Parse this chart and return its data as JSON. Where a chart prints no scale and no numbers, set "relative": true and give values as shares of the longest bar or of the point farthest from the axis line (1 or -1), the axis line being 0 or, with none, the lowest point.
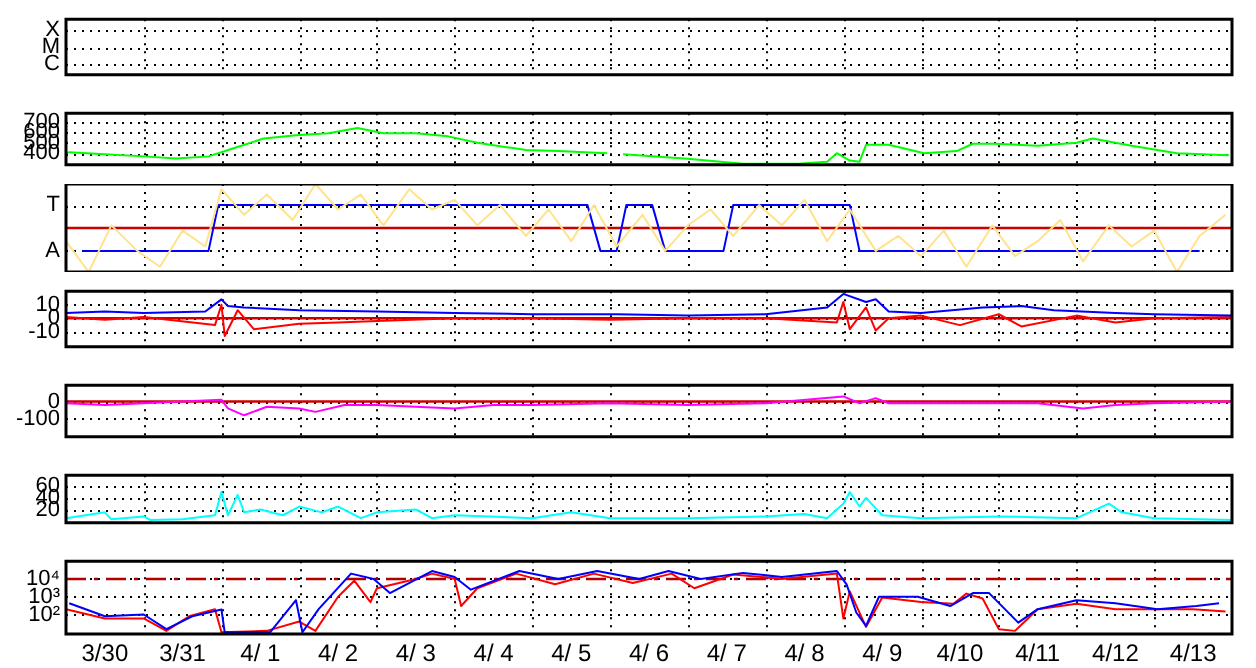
{
  "chart_data": [
    {
      "type": "other",
      "y_categories": [
        "X",
        "M",
        "C"
      ]
    },
    {
      "type": "line",
      "xlim": [
        "--03-30",
        "--04-14"
      ],
      "xticks": [
        {
          "value": "--03-31",
          "label": null
        },
        {
          "value": "--04-01",
          "label": null
        },
        {
          "value": "--04-02",
          "label": null
        },
        {
          "value": "--04-03",
          "label": null
        },
        {
          "value": "--04-04",
          "label": null
        },
        {
          "value": "--04-05",
          "label": null
        },
        {
          "value": "--04-06",
          "label": null
        },
        {
          "value": "--04-07",
          "label": null
        },
        {
          "value": "--04-08",
          "label": null
        },
        {
          "value": "--04-09",
          "label": null
        },
        {
          "value": "--04-10",
          "label": null
        },
        {
          "value": "--04-11",
          "label": null
        },
        {
          "value": "--04-12",
          "label": null
        },
        {
          "value": "--04-13",
          "label": null
        }
      ],
      "ylim": [
        290,
        780
      ],
      "yticks": [
        400,
        500,
        600,
        700
      ],
      "grid": true,
      "tick_labels": "y",
      "marker": "none",
      "series": [
        {
          "color": "#00ff00",
          "x": [
            "--03-30T00:00",
            "--03-30T01:00",
            "--03-30T12:00",
            "--03-31T00:00",
            "--03-31T10:00",
            "--03-31T20:00",
            "--04-01T03:00",
            "--04-01T13:00",
            "--04-01T23:00",
            "--04-02T09:00",
            "--04-02T18:00",
            "--04-03T02:00",
            "--04-03T12:00",
            "--04-03T22:00",
            "--04-04T07:00",
            "--04-04T22:00",
            "--04-05T08:00",
            "--04-05T23:00",
            "--04-06T01:00",
            "--04-06T04:00",
            "--04-06T23:00",
            "--04-07T17:00",
            "--04-08T10:00",
            "--04-08T19:00",
            "--04-08T22:00",
            "--04-09T02:00",
            "--04-09T05:00",
            "--04-09T07:00",
            "--04-09T14:00",
            "--04-10T01:00",
            "--04-10T11:00",
            "--04-10T16:00",
            "--04-10T23:00",
            "--04-11T12:00",
            "--04-12T00:00",
            "--04-12T05:00",
            "--04-12T17:00",
            "--04-13T07:00",
            "--04-13T23:00"
          ],
          "values": [
            400,
            410,
            390,
            370,
            350,
            370,
            440,
            540,
            570,
            590,
            640,
            590,
            590,
            560,
            500,
            430,
            420,
            400,
            null,
            390,
            350,
            300,
            300,
            320,
            400,
            330,
            320,
            480,
            480,
            400,
            420,
            490,
            490,
            470,
            500,
            540,
            470,
            400,
            380
          ]
        }
      ]
    },
    {
      "type": "line",
      "relative": true,
      "xlim": [
        "--03-30",
        "--04-14"
      ],
      "xticks": [
        {
          "value": "--03-31",
          "label": null
        },
        {
          "value": "--04-01",
          "label": null
        },
        {
          "value": "--04-02",
          "label": null
        },
        {
          "value": "--04-03",
          "label": null
        },
        {
          "value": "--04-04",
          "label": null
        },
        {
          "value": "--04-05",
          "label": null
        },
        {
          "value": "--04-06",
          "label": null
        },
        {
          "value": "--04-07",
          "label": null
        },
        {
          "value": "--04-08",
          "label": null
        },
        {
          "value": "--04-09",
          "label": null
        },
        {
          "value": "--04-10",
          "label": null
        },
        {
          "value": "--04-11",
          "label": null
        },
        {
          "value": "--04-12",
          "label": null
        },
        {
          "value": "--04-13",
          "label": null
        }
      ],
      "grid": true,
      "tick_labels": false,
      "marker": "none",
      "annotations": [
        "T",
        "A"
      ],
      "ref_lines": [
        {
          "axis": "y",
          "value": 0.5,
          "color": "#cc0000"
        }
      ],
      "series": [
        {
          "color": "#ffe38c",
          "x": [
            "--03-30T00:00",
            "--03-30T07:00",
            "--03-30T14:00",
            "--03-30T22:00",
            "--03-31T05:00",
            "--03-31T12:00",
            "--03-31T19:00",
            "--04-01T00:00",
            "--04-01T07:00",
            "--04-01T14:00",
            "--04-01T22:00",
            "--04-02T05:00",
            "--04-02T12:00",
            "--04-02T19:00",
            "--04-03T02:00",
            "--04-03T10:00",
            "--04-03T17:00",
            "--04-04T00:00",
            "--04-04T07:00",
            "--04-04T14:00",
            "--04-04T22:00",
            "--04-05T05:00",
            "--04-05T12:00",
            "--04-05T19:00",
            "--04-06T02:00",
            "--04-06T10:00",
            "--04-06T17:00",
            "--04-07T00:00",
            "--04-07T07:00",
            "--04-07T14:00",
            "--04-07T22:00",
            "--04-08T05:00",
            "--04-08T12:00",
            "--04-08T19:00",
            "--04-09T02:00",
            "--04-09T10:00",
            "--04-09T17:00",
            "--04-10T00:00",
            "--04-10T07:00",
            "--04-10T14:00",
            "--04-10T22:00",
            "--04-11T05:00",
            "--04-11T12:00",
            "--04-11T19:00",
            "--04-12T02:00",
            "--04-12T10:00",
            "--04-12T17:00",
            "--04-13T00:00",
            "--04-13T07:00",
            "--04-13T14:00",
            "--04-13T22:00"
          ],
          "values": [
            0.35,
            0,
            0.53,
            0.24,
            0.06,
            0.47,
            0.29,
            0.94,
            0.65,
            0.88,
            0.59,
            1,
            0.71,
            0.88,
            0.53,
            0.94,
            0.71,
            0.82,
            0.53,
            0.76,
            0.41,
            0.71,
            0.35,
            0.76,
            0.29,
            0.65,
            0.24,
            0.53,
            0.71,
            0.41,
            0.76,
            0.53,
            0.82,
            0.35,
            0.71,
            0.24,
            0.41,
            0.18,
            0.47,
            0.06,
            0.53,
            0.18,
            0.35,
            0.59,
            0.12,
            0.53,
            0.29,
            0.47,
            0,
            0.41,
            0.65
          ]
        },
        {
          "color": "#0000ff",
          "x": [
            "--03-30T05:00",
            "--03-31T20:00",
            "--03-31T23:00",
            "--04-05T17:00",
            "--04-05T21:00",
            "--04-06T02:00",
            "--04-06T05:00",
            "--04-06T13:00",
            "--04-06T17:00",
            "--04-07T11:00",
            "--04-07T14:00",
            "--04-09T02:00",
            "--04-09T05:00",
            "--04-13T14:00"
          ],
          "values": [
            0.24,
            0.24,
            0.76,
            0.76,
            0.24,
            0.24,
            0.76,
            0.76,
            0.24,
            0.24,
            0.76,
            0.76,
            0.24,
            0.24
          ]
        }
      ]
    },
    {
      "type": "line",
      "xlim": [
        "--03-30",
        "--04-14"
      ],
      "xticks": [
        {
          "value": "--03-31",
          "label": null
        },
        {
          "value": "--04-01",
          "label": null
        },
        {
          "value": "--04-02",
          "label": null
        },
        {
          "value": "--04-03",
          "label": null
        },
        {
          "value": "--04-04",
          "label": null
        },
        {
          "value": "--04-05",
          "label": null
        },
        {
          "value": "--04-06",
          "label": null
        },
        {
          "value": "--04-07",
          "label": null
        },
        {
          "value": "--04-08",
          "label": null
        },
        {
          "value": "--04-09",
          "label": null
        },
        {
          "value": "--04-10",
          "label": null
        },
        {
          "value": "--04-11",
          "label": null
        },
        {
          "value": "--04-12",
          "label": null
        },
        {
          "value": "--04-13",
          "label": null
        }
      ],
      "ylim": [
        -21,
        20
      ],
      "yticks": [
        -10,
        0,
        10
      ],
      "grid": true,
      "tick_labels": "y",
      "marker": "none",
      "ref_lines": [
        {
          "axis": "y",
          "value": 0,
          "color": "#cc0000"
        }
      ],
      "series": [
        {
          "color": "#0000ff",
          "x": [
            "--03-30T00:00",
            "--03-30T12:00",
            "--03-31T00:00",
            "--03-31T19:00",
            "--04-01T00:00",
            "--04-01T02:00",
            "--04-01T07:00",
            "--04-02T00:00",
            "--04-03T00:00",
            "--04-04T00:00",
            "--04-05T00:00",
            "--04-05T22:00",
            "--04-06T02:00",
            "--04-07T00:00",
            "--04-08T00:00",
            "--04-08T19:00",
            "--04-09T00:00",
            "--04-09T07:00",
            "--04-09T10:00",
            "--04-09T14:00",
            "--04-10T00:00",
            "--04-10T19:00",
            "--04-11T07:00",
            "--04-11T17:00",
            "--04-12T12:00",
            "--04-13T00:00",
            "--04-14T00:00"
          ],
          "values": [
            4,
            5,
            4,
            5,
            14,
            9,
            8,
            6,
            5,
            4,
            3,
            3,
            3,
            2,
            3,
            8,
            18,
            12,
            14,
            5,
            4,
            8,
            9,
            6,
            4,
            3,
            2
          ]
        },
        {
          "color": "#ff0000",
          "x": [
            "--03-30T00:00",
            "--03-30T12:00",
            "--03-31T00:00",
            "--03-31T22:00",
            "--04-01T00:00",
            "--04-01T01:00",
            "--04-01T05:00",
            "--04-01T10:00",
            "--04-02T00:00",
            "--04-02T12:00",
            "--04-03T00:00",
            "--04-04T00:00",
            "--04-05T00:00",
            "--04-06T00:00",
            "--04-07T00:00",
            "--04-08T00:00",
            "--04-08T22:00",
            "--04-09T00:00",
            "--04-09T02:00",
            "--04-09T07:00",
            "--04-09T10:00",
            "--04-09T14:00",
            "--04-10T00:00",
            "--04-10T12:00",
            "--04-11T00:00",
            "--04-11T07:00",
            "--04-12T00:00",
            "--04-12T12:00",
            "--04-13T00:00",
            "--04-14T00:00"
          ],
          "values": [
            1,
            -1,
            1,
            -5,
            10,
            -13,
            6,
            -8,
            -4,
            -3,
            -2,
            0,
            0,
            -1,
            0,
            0,
            -3,
            12,
            -8,
            8,
            -9,
            0,
            2,
            -5,
            3,
            -6,
            2,
            -3,
            0,
            1
          ]
        }
      ]
    },
    {
      "type": "line",
      "xlim": [
        "--03-30",
        "--04-14"
      ],
      "xticks": [
        {
          "value": "--03-31",
          "label": null
        },
        {
          "value": "--04-01",
          "label": null
        },
        {
          "value": "--04-02",
          "label": null
        },
        {
          "value": "--04-03",
          "label": null
        },
        {
          "value": "--04-04",
          "label": null
        },
        {
          "value": "--04-05",
          "label": null
        },
        {
          "value": "--04-06",
          "label": null
        },
        {
          "value": "--04-07",
          "label": null
        },
        {
          "value": "--04-08",
          "label": null
        },
        {
          "value": "--04-09",
          "label": null
        },
        {
          "value": "--04-10",
          "label": null
        },
        {
          "value": "--04-11",
          "label": null
        },
        {
          "value": "--04-12",
          "label": null
        },
        {
          "value": "--04-13",
          "label": null
        }
      ],
      "ylim": [
        -205,
        95
      ],
      "yticks": [
        -100,
        0
      ],
      "grid": true,
      "tick_labels": "y",
      "marker": "none",
      "ref_lines": [
        {
          "axis": "y",
          "value": 0,
          "color": "#cc0000"
        }
      ],
      "series": [
        {
          "color": "#ff00ff",
          "x": [
            "--03-30T00:00",
            "--03-30T12:00",
            "--03-31T00:00",
            "--04-01T00:00",
            "--04-01T02:00",
            "--04-01T07:00",
            "--04-01T14:00",
            "--04-02T00:00",
            "--04-02T05:00",
            "--04-02T14:00",
            "--04-03T00:00",
            "--04-04T00:00",
            "--04-04T12:00",
            "--04-05T00:00",
            "--04-06T00:00",
            "--04-07T00:00",
            "--04-08T00:00",
            "--04-09T00:00",
            "--04-09T05:00",
            "--04-09T10:00",
            "--04-09T14:00",
            "--04-10T00:00",
            "--04-11T00:00",
            "--04-11T12:00",
            "--04-12T02:00",
            "--04-12T12:00",
            "--04-13T00:00",
            "--04-14T00:00"
          ],
          "values": [
            -10,
            -20,
            -10,
            10,
            -40,
            -80,
            -30,
            -40,
            -60,
            -20,
            -20,
            -40,
            -20,
            -20,
            -10,
            -20,
            -10,
            30,
            -10,
            20,
            -10,
            -10,
            -10,
            -10,
            -40,
            -20,
            -10,
            0
          ]
        }
      ]
    },
    {
      "type": "line",
      "xlim": [
        "--03-30",
        "--04-14"
      ],
      "xticks": [
        {
          "value": "--03-31",
          "label": null
        },
        {
          "value": "--04-01",
          "label": null
        },
        {
          "value": "--04-02",
          "label": null
        },
        {
          "value": "--04-03",
          "label": null
        },
        {
          "value": "--04-04",
          "label": null
        },
        {
          "value": "--04-05",
          "label": null
        },
        {
          "value": "--04-06",
          "label": null
        },
        {
          "value": "--04-07",
          "label": null
        },
        {
          "value": "--04-08",
          "label": null
        },
        {
          "value": "--04-09",
          "label": null
        },
        {
          "value": "--04-10",
          "label": null
        },
        {
          "value": "--04-11",
          "label": null
        },
        {
          "value": "--04-12",
          "label": null
        },
        {
          "value": "--04-13",
          "label": null
        }
      ],
      "ylim": [
        -3,
        79
      ],
      "yticks": [
        20,
        40,
        60
      ],
      "grid": true,
      "tick_labels": "y",
      "marker": "none",
      "series": [
        {
          "color": "#00ffff",
          "x": [
            "--03-30T00:00",
            "--03-30T12:00",
            "--03-30T14:00",
            "--03-31T00:00",
            "--03-31T02:00",
            "--03-31T12:00",
            "--03-31T22:00",
            "--04-01T00:00",
            "--04-01T02:00",
            "--04-01T05:00",
            "--04-01T07:00",
            "--04-01T12:00",
            "--04-01T19:00",
            "--04-02T00:00",
            "--04-02T07:00",
            "--04-02T12:00",
            "--04-02T19:00",
            "--04-03T00:00",
            "--04-03T12:00",
            "--04-03T17:00",
            "--04-04T00:00",
            "--04-05T00:00",
            "--04-05T12:00",
            "--04-06T00:00",
            "--04-07T00:00",
            "--04-08T00:00",
            "--04-08T12:00",
            "--04-08T19:00",
            "--04-09T00:00",
            "--04-09T02:00",
            "--04-09T05:00",
            "--04-09T07:00",
            "--04-09T12:00",
            "--04-10T00:00",
            "--04-11T00:00",
            "--04-12T00:00",
            "--04-12T10:00",
            "--04-12T14:00",
            "--04-13T00:00",
            "--04-14T00:00"
          ],
          "values": [
            5,
            15,
            3,
            8,
            2,
            3,
            10,
            50,
            10,
            45,
            15,
            20,
            10,
            25,
            15,
            25,
            5,
            15,
            20,
            5,
            10,
            5,
            15,
            5,
            5,
            8,
            12,
            5,
            30,
            50,
            25,
            40,
            10,
            5,
            8,
            5,
            30,
            15,
            5,
            2
          ]
        }
      ]
    },
    {
      "type": "line",
      "xlim": [
        "--03-30",
        "--04-14"
      ],
      "xticks": [
        {
          "value": "--03-30T12:00",
          "label": "3/30"
        },
        {
          "value": "--03-31",
          "label": null
        },
        {
          "value": "--03-31T12:00",
          "label": "3/31"
        },
        {
          "value": "--04-01",
          "label": null
        },
        {
          "value": "--04-01T12:00",
          "label": "4/ 1"
        },
        {
          "value": "--04-02",
          "label": null
        },
        {
          "value": "--04-02T12:00",
          "label": "4/ 2"
        },
        {
          "value": "--04-03",
          "label": null
        },
        {
          "value": "--04-03T12:00",
          "label": "4/ 3"
        },
        {
          "value": "--04-04",
          "label": null
        },
        {
          "value": "--04-04T12:00",
          "label": "4/ 4"
        },
        {
          "value": "--04-05",
          "label": null
        },
        {
          "value": "--04-05T12:00",
          "label": "4/ 5"
        },
        {
          "value": "--04-06",
          "label": null
        },
        {
          "value": "--04-06T12:00",
          "label": "4/ 6"
        },
        {
          "value": "--04-07",
          "label": null
        },
        {
          "value": "--04-07T12:00",
          "label": "4/ 7"
        },
        {
          "value": "--04-08",
          "label": null
        },
        {
          "value": "--04-08T12:00",
          "label": "4/ 8"
        },
        {
          "value": "--04-09",
          "label": null
        },
        {
          "value": "--04-09T12:00",
          "label": "4/ 9"
        },
        {
          "value": "--04-10",
          "label": null
        },
        {
          "value": "--04-10T12:00",
          "label": "4/10"
        },
        {
          "value": "--04-11",
          "label": null
        },
        {
          "value": "--04-11T12:00",
          "label": "4/11"
        },
        {
          "value": "--04-12",
          "label": null
        },
        {
          "value": "--04-12T12:00",
          "label": "4/12"
        },
        {
          "value": "--04-13",
          "label": null
        },
        {
          "value": "--04-13T12:00",
          "label": "4/13"
        }
      ],
      "ylim": [
        8,
        100000
      ],
      "log": true,
      "yticks": [
        {
          "value": 100,
          "label": "10²"
        },
        {
          "value": 1000,
          "label": "10³"
        },
        {
          "value": 10000,
          "label": "10⁴"
        }
      ],
      "grid": true,
      "marker": "none",
      "ref_lines": [
        {
          "axis": "y",
          "value": 10000,
          "color": "#b00000",
          "line_style": "dashed"
        }
      ],
      "series": [
        {
          "color": "#0000ff",
          "x": [
            "--03-30T01:00",
            "--03-30T12:00",
            "--03-31T00:00",
            "--03-31T07:00",
            "--03-31T15:00",
            "--04-01T00:00",
            "--04-01T01:00",
            "--04-01T15:00",
            "--04-01T23:00",
            "--04-02T01:00",
            "--04-02T06:00",
            "--04-02T16:00",
            "--04-02T23:00",
            "--04-03T04:00",
            "--04-03T17:00",
            "--04-04T00:00",
            "--04-04T05:00",
            "--04-04T20:00",
            "--04-05T08:00",
            "--04-05T20:00",
            "--04-06T09:00",
            "--04-06T18:00",
            "--04-07T04:00",
            "--04-07T17:00",
            "--04-08T05:00",
            "--04-08T22:00",
            "--04-09T01:00",
            "--04-09T04:00",
            "--04-09T07:00",
            "--04-09T11:00",
            "--04-09T23:00",
            "--04-10T09:00",
            "--04-10T16:00",
            "--04-10T21:00",
            "--04-11T06:00",
            "--04-11T12:00",
            "--04-12T00:00",
            "--04-12T12:00",
            "--04-13T01:00",
            "--04-13T13:00",
            "--04-13T20:00"
          ],
          "values": [
            430,
            80,
            100,
            15,
            80,
            190,
            10,
            10,
            640,
            10,
            200,
            20000,
            10000,
            1600,
            28000,
            13000,
            2500,
            28000,
            10000,
            28000,
            10000,
            28000,
            10000,
            22000,
            13000,
            28000,
            5000,
            130,
            23,
            1000,
            1000,
            300,
            1600,
            1600,
            35,
            200,
            640,
            430,
            200,
            300,
            430
          ]
        },
        {
          "color": "#ff0000",
          "x": [
            "--03-30T00:00",
            "--03-30T12:00",
            "--03-31T00:00",
            "--03-31T07:00",
            "--03-31T14:00",
            "--03-31T22:00",
            "--04-01T00:00",
            "--04-01T14:00",
            "--04-02T00:00",
            "--04-02T05:00",
            "--04-02T12:00",
            "--04-02T17:00",
            "--04-02T22:00",
            "--04-03T00:00",
            "--04-03T12:00",
            "--04-03T17:00",
            "--04-04T00:00",
            "--04-04T02:00",
            "--04-04T07:00",
            "--04-04T19:00",
            "--04-05T07:00",
            "--04-05T19:00",
            "--04-06T07:00",
            "--04-06T19:00",
            "--04-07T02:00",
            "--04-07T14:00",
            "--04-08T05:00",
            "--04-08T22:00",
            "--04-09T00:00",
            "--04-09T02:00",
            "--04-09T07:00",
            "--04-09T12:00",
            "--04-10T00:00",
            "--04-10T10:00",
            "--04-10T14:00",
            "--04-10T19:00",
            "--04-11T00:00",
            "--04-11T05:00",
            "--04-11T12:00",
            "--04-12T00:00",
            "--04-12T12:00",
            "--04-13T00:00",
            "--04-13T12:00",
            "--04-13T22:00"
          ],
          "values": [
            200,
            60,
            60,
            12,
            80,
            200,
            10,
            12,
            40,
            12,
            1000,
            8000,
            500,
            3000,
            10000,
            20000,
            10000,
            300,
            3000,
            20000,
            5000,
            20000,
            6000,
            20000,
            3000,
            18000,
            10000,
            20000,
            60,
            2000,
            20,
            900,
            500,
            400,
            1500,
            800,
            15,
            12,
            200,
            400,
            200,
            200,
            200,
            150
          ]
        }
      ]
    }
  ]
}
